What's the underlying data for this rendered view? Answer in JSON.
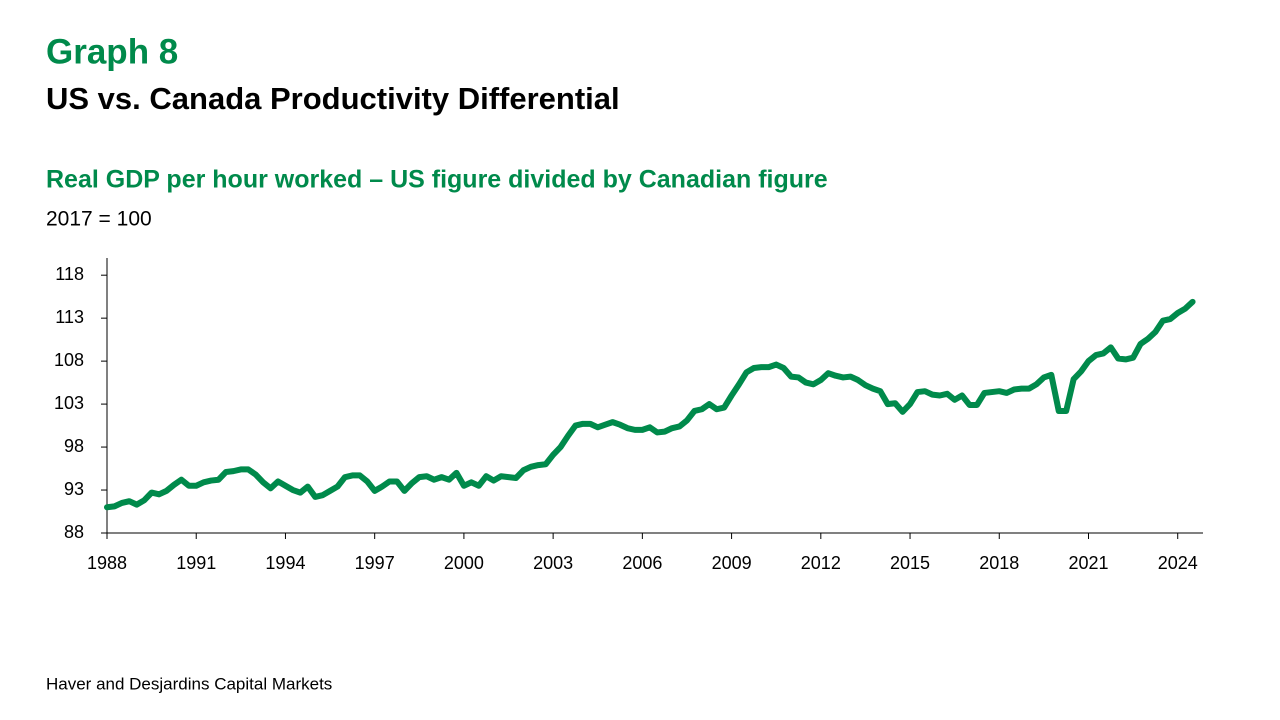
{
  "chart_data": {
    "type": "line",
    "title": "Graph 8",
    "subtitle": "US vs. Canada Productivity Differential",
    "chart_title": "Real GDP per hour worked – US figure divided by Canadian figure",
    "y_label": "2017 = 100",
    "source": "Haver and Desjardins Capital Markets",
    "color": "#008a4b",
    "xlim": [
      1988,
      2024.85
    ],
    "xticks": [
      1988,
      1991,
      1994,
      1997,
      2000,
      2003,
      2006,
      2009,
      2012,
      2015,
      2018,
      2021,
      2024
    ],
    "ylim": [
      88,
      120
    ],
    "yticks": [
      88,
      93,
      98,
      103,
      108,
      113,
      118
    ],
    "x": [
      1988,
      1988.25,
      1988.5,
      1988.75,
      1989,
      1989.25,
      1989.5,
      1989.75,
      1990,
      1990.25,
      1990.5,
      1990.75,
      1991,
      1991.25,
      1991.5,
      1991.75,
      1992,
      1992.25,
      1992.5,
      1992.75,
      1993,
      1993.25,
      1993.5,
      1993.75,
      1994,
      1994.25,
      1994.5,
      1994.75,
      1995,
      1995.25,
      1995.5,
      1995.75,
      1996,
      1996.25,
      1996.5,
      1996.75,
      1997,
      1997.25,
      1997.5,
      1997.75,
      1998,
      1998.25,
      1998.5,
      1998.75,
      1999,
      1999.25,
      1999.5,
      1999.75,
      2000,
      2000.25,
      2000.5,
      2000.75,
      2001,
      2001.25,
      2001.5,
      2001.75,
      2002,
      2002.25,
      2002.5,
      2002.75,
      2003,
      2003.25,
      2003.5,
      2003.75,
      2004,
      2004.25,
      2004.5,
      2004.75,
      2005,
      2005.25,
      2005.5,
      2005.75,
      2006,
      2006.25,
      2006.5,
      2006.75,
      2007,
      2007.25,
      2007.5,
      2007.75,
      2008,
      2008.25,
      2008.5,
      2008.75,
      2009,
      2009.25,
      2009.5,
      2009.75,
      2010,
      2010.25,
      2010.5,
      2010.75,
      2011,
      2011.25,
      2011.5,
      2011.75,
      2012,
      2012.25,
      2012.5,
      2012.75,
      2013,
      2013.25,
      2013.5,
      2013.75,
      2014,
      2014.25,
      2014.5,
      2014.75,
      2015,
      2015.25,
      2015.5,
      2015.75,
      2016,
      2016.25,
      2016.5,
      2016.75,
      2017,
      2017.25,
      2017.5,
      2017.75,
      2018,
      2018.25,
      2018.5,
      2018.75,
      2019,
      2019.25,
      2019.5,
      2019.75,
      2020,
      2020.25,
      2020.5,
      2020.75,
      2021,
      2021.25,
      2021.5,
      2021.75,
      2022,
      2022.25,
      2022.5,
      2022.75,
      2023,
      2023.25,
      2023.5,
      2023.75,
      2024,
      2024.25,
      2024.5
    ],
    "values": [
      91.0,
      91.1,
      91.5,
      91.7,
      91.3,
      91.8,
      92.7,
      92.5,
      92.9,
      93.6,
      94.2,
      93.5,
      93.5,
      93.9,
      94.1,
      94.2,
      95.1,
      95.2,
      95.4,
      95.4,
      94.8,
      93.9,
      93.2,
      94.0,
      93.5,
      93.0,
      92.7,
      93.4,
      92.2,
      92.4,
      92.9,
      93.4,
      94.5,
      94.7,
      94.7,
      94.0,
      92.9,
      93.4,
      94.0,
      94.0,
      92.9,
      93.8,
      94.5,
      94.6,
      94.2,
      94.5,
      94.2,
      95.0,
      93.5,
      93.9,
      93.5,
      94.6,
      94.1,
      94.6,
      94.5,
      94.4,
      95.3,
      95.7,
      95.9,
      96.0,
      97.1,
      98.0,
      99.3,
      100.5,
      100.7,
      100.7,
      100.3,
      100.6,
      100.9,
      100.6,
      100.2,
      100.0,
      100.0,
      100.3,
      99.7,
      99.8,
      100.2,
      100.4,
      101.1,
      102.2,
      102.4,
      103.0,
      102.4,
      102.6,
      104.0,
      105.3,
      106.7,
      107.2,
      107.3,
      107.3,
      107.6,
      107.2,
      106.2,
      106.1,
      105.5,
      105.3,
      105.8,
      106.6,
      106.3,
      106.1,
      106.2,
      105.8,
      105.2,
      104.8,
      104.5,
      103.0,
      103.1,
      102.1,
      103.0,
      104.4,
      104.5,
      104.1,
      104.0,
      104.2,
      103.5,
      104.0,
      102.9,
      102.9,
      104.3,
      104.4,
      104.5,
      104.3,
      104.7,
      104.8,
      104.8,
      105.3,
      106.1,
      106.4,
      102.2,
      102.2,
      105.9,
      106.8,
      108.0,
      108.7,
      108.9,
      109.6,
      108.3,
      108.2,
      108.4,
      110.0,
      110.6,
      111.4,
      112.7,
      112.9,
      113.6,
      114.1,
      114.9
    ]
  }
}
